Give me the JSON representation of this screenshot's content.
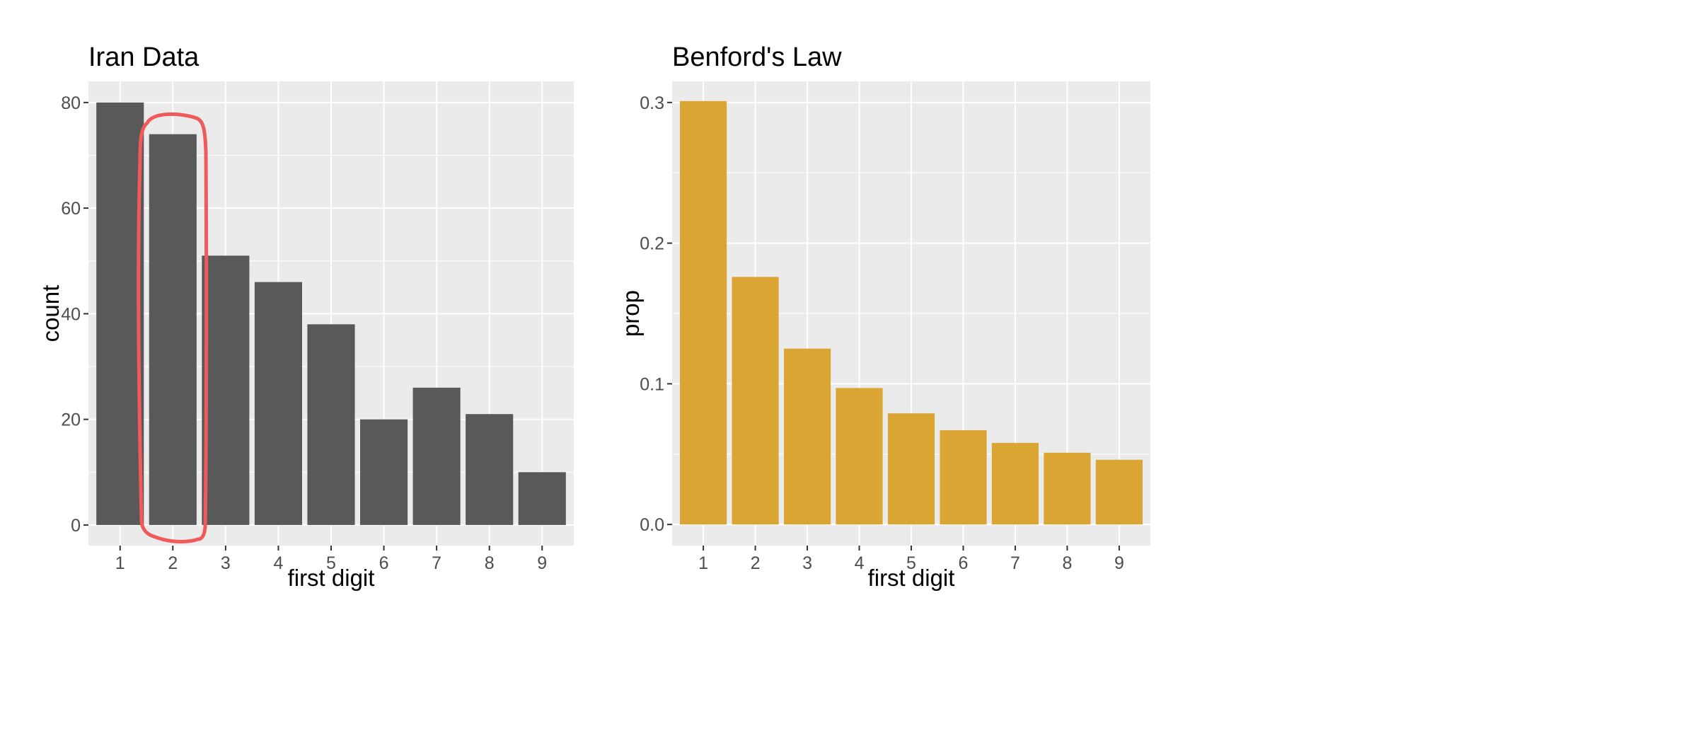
{
  "chart_data": [
    {
      "type": "bar",
      "title": "Iran Data",
      "xlabel": "first digit",
      "ylabel": "count",
      "categories": [
        "1",
        "2",
        "3",
        "4",
        "5",
        "6",
        "7",
        "8",
        "9"
      ],
      "values": [
        80,
        74,
        51,
        46,
        38,
        20,
        26,
        21,
        10
      ],
      "ylim": [
        -3.9,
        84
      ],
      "y_ticks": [
        0,
        20,
        40,
        60,
        80
      ],
      "y_tick_labels": [
        "0",
        "20",
        "40",
        "60",
        "80"
      ],
      "bar_color": "#595959",
      "panel_color": "#ebebeb",
      "grid": true,
      "annotation": {
        "type": "hand-drawn-ellipse",
        "target_category": "2",
        "color": "#f15a5a"
      }
    },
    {
      "type": "bar",
      "title": "Benford's Law",
      "xlabel": "first digit",
      "ylabel": "prop",
      "categories": [
        "1",
        "2",
        "3",
        "4",
        "5",
        "6",
        "7",
        "8",
        "9"
      ],
      "values": [
        0.301,
        0.176,
        0.125,
        0.097,
        0.079,
        0.067,
        0.058,
        0.051,
        0.046
      ],
      "ylim": [
        -0.015,
        0.315
      ],
      "y_ticks": [
        0.0,
        0.1,
        0.2,
        0.3
      ],
      "y_tick_labels": [
        "0.0",
        "0.1",
        "0.2",
        "0.3"
      ],
      "bar_color": "#daa532",
      "panel_color": "#ebebeb",
      "grid": true
    }
  ]
}
